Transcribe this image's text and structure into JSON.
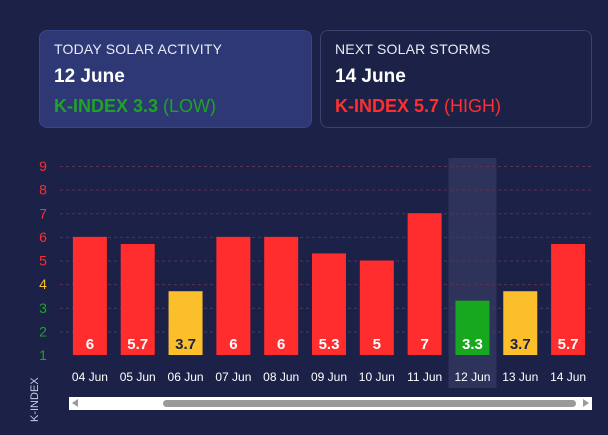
{
  "today": {
    "title": "TODAY SOLAR ACTIVITY",
    "date": "12 June",
    "kindex": "K-INDEX 3.3",
    "level": "(LOW)"
  },
  "next": {
    "title": "NEXT SOLAR STORMS",
    "date": "14 June",
    "kindex": "K-INDEX 5.7",
    "level": "(HIGH)"
  },
  "colors": {
    "high": "#ff2d2d",
    "medium": "#fbbf2c",
    "low": "#18a820",
    "background": "#1c2148",
    "highlight_column": "#343a63"
  },
  "chart_data": {
    "type": "bar",
    "categories": [
      "04 Jun",
      "05 Jun",
      "06 Jun",
      "07 Jun",
      "08 Jun",
      "09 Jun",
      "10 Jun",
      "11 Jun",
      "12 Jun",
      "13 Jun",
      "14 Jun"
    ],
    "values": [
      6,
      5.7,
      3.7,
      6,
      6,
      5.3,
      5,
      7,
      3.3,
      3.7,
      5.7
    ],
    "data_labels": [
      "6",
      "5.7",
      "3.7",
      "6",
      "6",
      "5.3",
      "5",
      "7",
      "3.3",
      "3.7",
      "5.7"
    ],
    "bar_levels": [
      "high",
      "high",
      "medium",
      "high",
      "high",
      "high",
      "high",
      "high",
      "low",
      "medium",
      "high"
    ],
    "y_ticks": [
      "1",
      "2",
      "3",
      "4",
      "5",
      "6",
      "7",
      "8",
      "9"
    ],
    "y_tick_levels": [
      "low",
      "low",
      "low",
      "medium",
      "high",
      "high",
      "high",
      "high",
      "high"
    ],
    "ylim": [
      1,
      9
    ],
    "ylabel": "K-INDEX",
    "highlighted_category": "12 Jun",
    "grid": true
  },
  "scrollbar": {
    "left_arrow": "scroll-left-icon",
    "right_arrow": "scroll-right-icon"
  }
}
